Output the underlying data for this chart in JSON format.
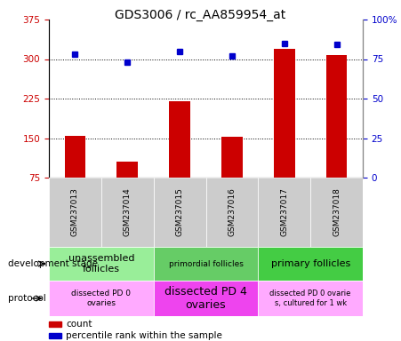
{
  "title": "GDS3006 / rc_AA859954_at",
  "samples": [
    "GSM237013",
    "GSM237014",
    "GSM237015",
    "GSM237016",
    "GSM237017",
    "GSM237018"
  ],
  "counts": [
    155,
    105,
    220,
    153,
    320,
    308
  ],
  "percentiles": [
    78,
    73,
    80,
    77,
    85,
    84
  ],
  "ylim_left": [
    75,
    375
  ],
  "ylim_right": [
    0,
    100
  ],
  "yticks_left": [
    75,
    150,
    225,
    300,
    375
  ],
  "yticks_right": [
    0,
    25,
    50,
    75,
    100
  ],
  "hlines": [
    150,
    225,
    300
  ],
  "bar_color": "#cc0000",
  "dot_color": "#0000cc",
  "dev_stage_groups": [
    {
      "label": "unassembled\nfollicles",
      "start": 0,
      "end": 2,
      "color": "#99ee99",
      "fontsize": 8
    },
    {
      "label": "primordial follicles",
      "start": 2,
      "end": 4,
      "color": "#66cc66",
      "fontsize": 6.5
    },
    {
      "label": "primary follicles",
      "start": 4,
      "end": 6,
      "color": "#44cc44",
      "fontsize": 8
    }
  ],
  "protocol_groups": [
    {
      "label": "dissected PD 0\novaries",
      "start": 0,
      "end": 2,
      "color": "#ffaaff",
      "fontsize": 6.5
    },
    {
      "label": "dissected PD 4\novaries",
      "start": 2,
      "end": 4,
      "color": "#ee44ee",
      "fontsize": 9
    },
    {
      "label": "dissected PD 0 ovarie\ns, cultured for 1 wk",
      "start": 4,
      "end": 6,
      "color": "#ffaaff",
      "fontsize": 6
    }
  ],
  "sample_box_color": "#cccccc",
  "legend_count_label": "count",
  "legend_percentile_label": "percentile rank within the sample",
  "dev_stage_label": "development stage",
  "protocol_label": "protocol",
  "bg_color": "#ffffff",
  "tick_label_color_left": "#cc0000",
  "tick_label_color_right": "#0000cc",
  "title_fontsize": 10
}
